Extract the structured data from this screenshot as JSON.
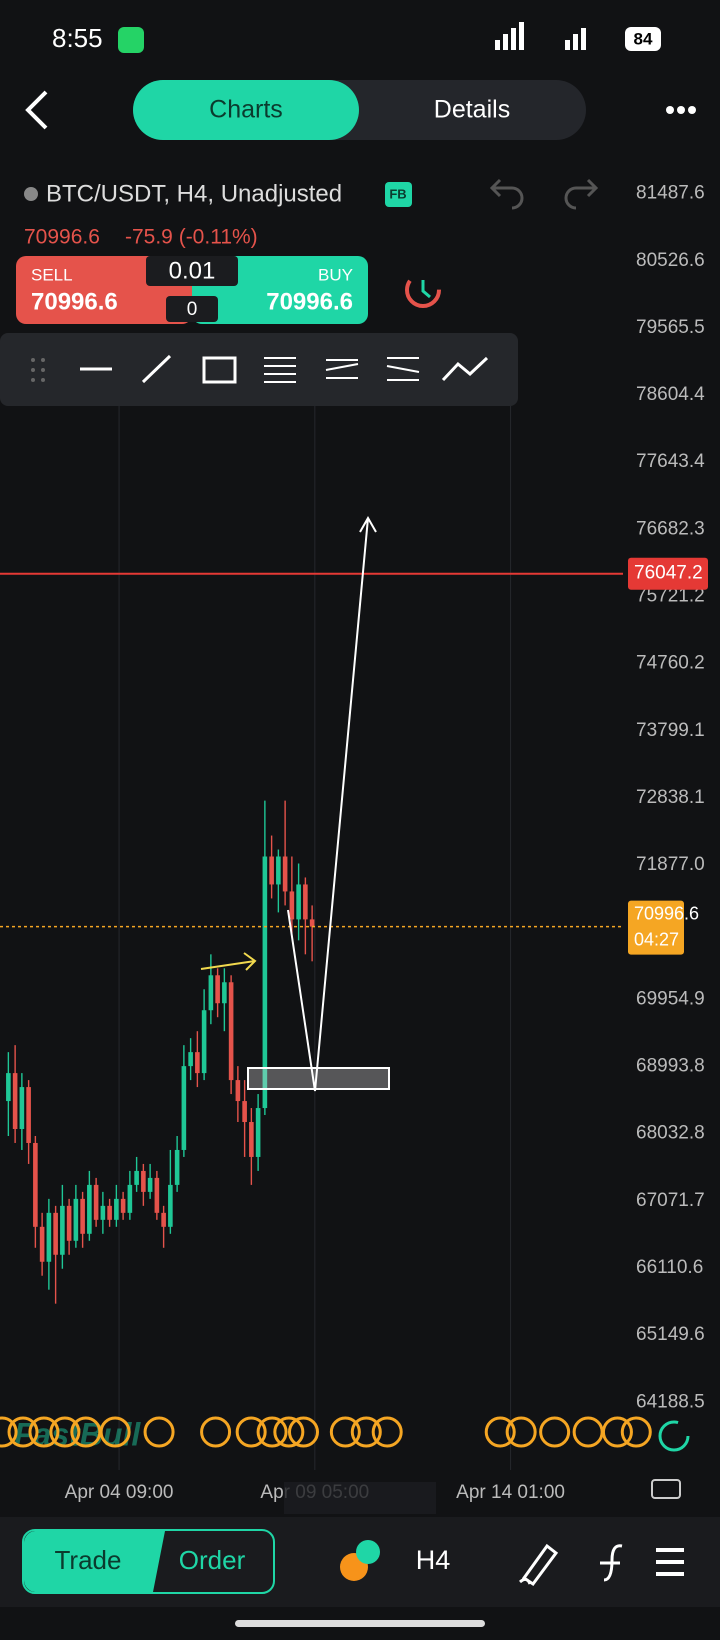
{
  "status_bar": {
    "time": "8:55",
    "battery": "84"
  },
  "header": {
    "tabs": [
      "Charts",
      "Details"
    ]
  },
  "symbol": {
    "title": "BTC/USDT, H4, Unadjusted",
    "badge": "FB",
    "price": "70996.6",
    "change": "-75.9 (-0.11%)"
  },
  "trade_panel": {
    "sell_label": "SELL",
    "sell_price": "70996.6",
    "buy_label": "BUY",
    "buy_price": "70996.6",
    "lot": "0.01",
    "count": "0"
  },
  "chart_data": {
    "type": "candlestick",
    "open": [
      68500,
      68900,
      68100,
      68700,
      67900,
      66700,
      66200,
      66900,
      66300,
      67000,
      66500,
      67100,
      66600,
      67300,
      66800,
      67000,
      66800,
      67100,
      66900,
      67300,
      67500,
      67200,
      67400,
      66900,
      66700,
      67300,
      67800,
      69000,
      69200,
      68900,
      69800,
      70300,
      69900,
      70200,
      68800,
      68500,
      68200,
      67700,
      68400,
      72000,
      71600,
      72000,
      71500,
      71100,
      71600,
      71100
    ],
    "high": [
      69200,
      69300,
      68900,
      68800,
      68000,
      66900,
      67100,
      67000,
      67300,
      67100,
      67300,
      67200,
      67500,
      67400,
      67200,
      67100,
      67300,
      67200,
      67500,
      67700,
      67600,
      67600,
      67500,
      67000,
      67800,
      68000,
      69300,
      69400,
      69500,
      70100,
      70600,
      70400,
      70400,
      70300,
      69000,
      68800,
      68400,
      68600,
      72800,
      72300,
      72100,
      72800,
      72000,
      71900,
      71700,
      71300
    ],
    "low": [
      68000,
      67900,
      67800,
      67600,
      66400,
      66000,
      65800,
      65600,
      66100,
      66300,
      66400,
      66400,
      66500,
      66700,
      66600,
      66700,
      66700,
      66800,
      66800,
      67200,
      67000,
      67100,
      66800,
      66400,
      66600,
      67200,
      67700,
      68800,
      68700,
      68800,
      69600,
      69700,
      69500,
      68600,
      68200,
      67700,
      67300,
      67500,
      68300,
      71400,
      71200,
      71300,
      70900,
      70800,
      70600,
      70500
    ],
    "close": [
      68900,
      68100,
      68700,
      67900,
      66700,
      66200,
      66900,
      66300,
      67000,
      66500,
      67100,
      66600,
      67300,
      66800,
      67000,
      66800,
      67100,
      66900,
      67300,
      67500,
      67200,
      67400,
      66900,
      66700,
      67300,
      67800,
      69000,
      69200,
      68900,
      69800,
      70300,
      69900,
      70200,
      68800,
      68500,
      68200,
      67700,
      68400,
      72000,
      71600,
      72000,
      71500,
      71100,
      71600,
      71100,
      70996.6
    ],
    "up_color": "#1fc796",
    "down_color": "#e5534b",
    "ylim": [
      64188.5,
      81487.6
    ],
    "yticks": [
      81487.6,
      80526.6,
      79565.5,
      78604.4,
      77643.4,
      76682.3,
      75721.2,
      74760.2,
      73799.1,
      72838.1,
      {
        "value": 71877,
        "label": "71877.0"
      },
      69954.9,
      68993.8,
      68032.8,
      67071.7,
      66110.6,
      65149.6,
      64188.5
    ],
    "xticks": [
      {
        "value": 16.4,
        "label": "Apr 04 09:00"
      },
      {
        "value": 45.4,
        "label": "Apr 09 05:00"
      },
      {
        "value": 74.4,
        "label": "Apr 14 01:00"
      }
    ],
    "grid": "vertical",
    "price_lines": [
      {
        "value": 76047.2,
        "color": "#e53935"
      },
      {
        "value": 70996.6,
        "countdown": "04:27",
        "color": "#f5a623"
      }
    ],
    "watermark": "FastBull"
  },
  "bottom_bar": {
    "buttons": [
      "Trade",
      "Order"
    ],
    "timeframe": "H4"
  }
}
